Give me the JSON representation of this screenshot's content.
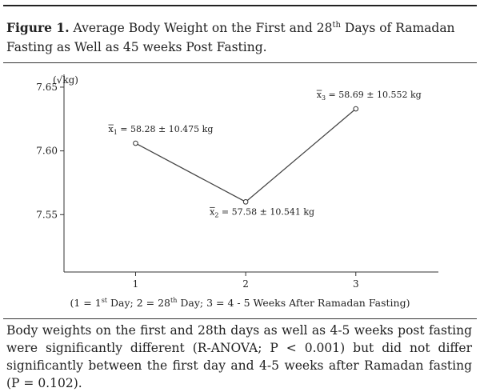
{
  "figure": {
    "label": "Figure 1.",
    "caption_pre": "Average Body Weight on the First and 28",
    "caption_sup": "th",
    "caption_post": "Days of Ramadan Fasting as Well as 45 weeks Post Fasting.",
    "note": "Body weights on the first and 28th days as well as 4-5 weeks post fasting were significantly different (R-ANOVA; P < 0.001) but did not differ significantly between the first day and 4-5 weeks after Ramadan fasting (P = 0.102)."
  },
  "chart_data": {
    "type": "line",
    "ylabel": "(√kg)",
    "x": [
      1,
      2,
      3
    ],
    "x_tick_labels": [
      "1",
      "2",
      "3"
    ],
    "y_tick_labels": [
      "7.55",
      "7.60",
      "7.65"
    ],
    "y_ticks": [
      7.55,
      7.6,
      7.65
    ],
    "ylim": [
      7.505,
      7.66
    ],
    "xlim": [
      0.35,
      3.75
    ],
    "series": [
      {
        "values": [
          7.606,
          7.56,
          7.633
        ]
      }
    ],
    "point_labels": [
      {
        "sym": "x",
        "sub": "1",
        "text": "= 58.28 ± 10.475 kg"
      },
      {
        "sym": "x",
        "sub": "2",
        "text": "= 57.58 ± 10.541 kg"
      },
      {
        "sym": "x",
        "sub": "3",
        "text": "= 58.69 ± 10.552 kg"
      }
    ],
    "xaxis_note": {
      "p1": "(1 = 1",
      "s1": "st",
      "p2": " Day; 2 = 28",
      "s2": "th",
      "p3": " Day; 3 = 4 - 5 Weeks After Ramadan Fasting)"
    },
    "grid": false,
    "legend": "none",
    "line_color": "#444444"
  }
}
